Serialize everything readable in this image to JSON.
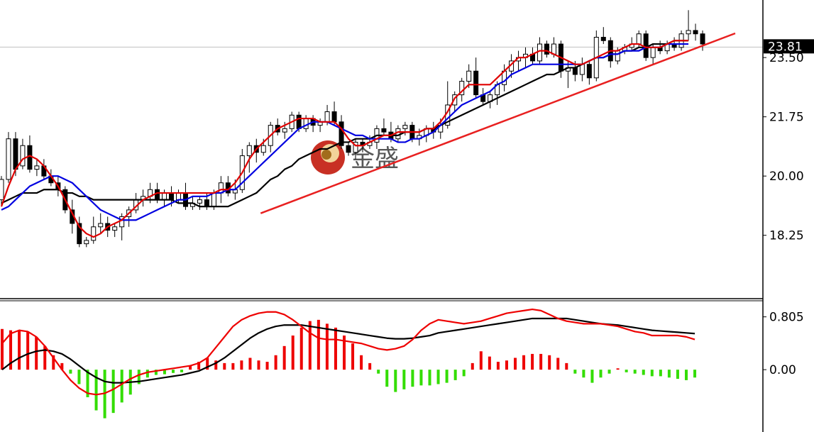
{
  "chart_data": [
    {
      "type": "candlestick",
      "panel": "price",
      "watermark": "金盛",
      "current_price": "23.81",
      "y_ticks": [
        "23.50",
        "21.75",
        "20.00",
        "18.25"
      ],
      "ylim": [
        16.4,
        25.2
      ],
      "colors": {
        "bull_body": "#ffffff",
        "bear_body": "#000000",
        "wick": "#000000",
        "ma_fast": "#e00000",
        "ma_mid": "#0000e0",
        "ma_slow": "#000000",
        "trendline": "#e82020"
      },
      "candles": [
        {
          "o": 19.3,
          "h": 20.0,
          "l": 19.1,
          "c": 19.9
        },
        {
          "o": 19.9,
          "h": 21.3,
          "l": 19.8,
          "c": 21.1
        },
        {
          "o": 21.1,
          "h": 21.3,
          "l": 20.0,
          "c": 20.2
        },
        {
          "o": 20.3,
          "h": 21.1,
          "l": 20.2,
          "c": 20.9
        },
        {
          "o": 20.9,
          "h": 21.2,
          "l": 20.1,
          "c": 20.2
        },
        {
          "o": 20.2,
          "h": 20.5,
          "l": 20.0,
          "c": 20.3
        },
        {
          "o": 20.3,
          "h": 20.5,
          "l": 19.9,
          "c": 20.0
        },
        {
          "o": 20.0,
          "h": 20.2,
          "l": 19.7,
          "c": 19.8
        },
        {
          "o": 19.8,
          "h": 20.0,
          "l": 19.4,
          "c": 19.6
        },
        {
          "o": 19.6,
          "h": 19.7,
          "l": 18.9,
          "c": 19.0
        },
        {
          "o": 19.0,
          "h": 19.3,
          "l": 18.3,
          "c": 18.6
        },
        {
          "o": 18.6,
          "h": 18.8,
          "l": 17.9,
          "c": 18.0
        },
        {
          "o": 18.0,
          "h": 18.2,
          "l": 17.9,
          "c": 18.1
        },
        {
          "o": 18.1,
          "h": 18.8,
          "l": 18.0,
          "c": 18.5
        },
        {
          "o": 18.5,
          "h": 18.9,
          "l": 18.3,
          "c": 18.6
        },
        {
          "o": 18.6,
          "h": 18.8,
          "l": 18.2,
          "c": 18.4
        },
        {
          "o": 18.4,
          "h": 18.6,
          "l": 18.2,
          "c": 18.5
        },
        {
          "o": 18.5,
          "h": 18.9,
          "l": 18.1,
          "c": 18.8
        },
        {
          "o": 18.8,
          "h": 19.1,
          "l": 18.5,
          "c": 19.0
        },
        {
          "o": 19.0,
          "h": 19.5,
          "l": 18.9,
          "c": 19.3
        },
        {
          "o": 19.3,
          "h": 19.6,
          "l": 19.1,
          "c": 19.4
        },
        {
          "o": 19.4,
          "h": 19.8,
          "l": 19.2,
          "c": 19.6
        },
        {
          "o": 19.6,
          "h": 19.8,
          "l": 19.2,
          "c": 19.3
        },
        {
          "o": 19.3,
          "h": 19.6,
          "l": 19.1,
          "c": 19.5
        },
        {
          "o": 19.5,
          "h": 19.7,
          "l": 19.1,
          "c": 19.3
        },
        {
          "o": 19.3,
          "h": 19.6,
          "l": 19.2,
          "c": 19.5
        },
        {
          "o": 19.5,
          "h": 19.8,
          "l": 19.0,
          "c": 19.1
        },
        {
          "o": 19.1,
          "h": 19.4,
          "l": 19.0,
          "c": 19.2
        },
        {
          "o": 19.2,
          "h": 19.4,
          "l": 19.0,
          "c": 19.3
        },
        {
          "o": 19.3,
          "h": 19.5,
          "l": 19.0,
          "c": 19.1
        },
        {
          "o": 19.1,
          "h": 19.6,
          "l": 19.0,
          "c": 19.5
        },
        {
          "o": 19.5,
          "h": 20.0,
          "l": 19.2,
          "c": 19.8
        },
        {
          "o": 19.8,
          "h": 20.0,
          "l": 19.4,
          "c": 19.5
        },
        {
          "o": 19.5,
          "h": 19.9,
          "l": 19.3,
          "c": 19.6
        },
        {
          "o": 19.6,
          "h": 20.8,
          "l": 19.5,
          "c": 20.6
        },
        {
          "o": 20.6,
          "h": 21.0,
          "l": 20.1,
          "c": 20.9
        },
        {
          "o": 20.9,
          "h": 21.1,
          "l": 20.4,
          "c": 20.7
        },
        {
          "o": 20.7,
          "h": 21.1,
          "l": 20.6,
          "c": 20.9
        },
        {
          "o": 20.9,
          "h": 21.6,
          "l": 20.7,
          "c": 21.5
        },
        {
          "o": 21.5,
          "h": 21.7,
          "l": 21.2,
          "c": 21.3
        },
        {
          "o": 21.3,
          "h": 21.6,
          "l": 21.1,
          "c": 21.4
        },
        {
          "o": 21.4,
          "h": 21.9,
          "l": 21.3,
          "c": 21.8
        },
        {
          "o": 21.8,
          "h": 21.9,
          "l": 21.3,
          "c": 21.4
        },
        {
          "o": 21.4,
          "h": 21.8,
          "l": 21.3,
          "c": 21.7
        },
        {
          "o": 21.7,
          "h": 21.8,
          "l": 21.3,
          "c": 21.5
        },
        {
          "o": 21.5,
          "h": 21.7,
          "l": 21.3,
          "c": 21.6
        },
        {
          "o": 21.6,
          "h": 22.1,
          "l": 21.5,
          "c": 21.9
        },
        {
          "o": 21.9,
          "h": 22.2,
          "l": 21.5,
          "c": 21.6
        },
        {
          "o": 21.6,
          "h": 21.8,
          "l": 20.8,
          "c": 20.9
        },
        {
          "o": 20.9,
          "h": 21.0,
          "l": 20.6,
          "c": 20.7
        },
        {
          "o": 20.7,
          "h": 21.1,
          "l": 20.5,
          "c": 21.0
        },
        {
          "o": 21.0,
          "h": 21.1,
          "l": 20.7,
          "c": 20.9
        },
        {
          "o": 20.9,
          "h": 21.2,
          "l": 20.8,
          "c": 21.0
        },
        {
          "o": 21.0,
          "h": 21.5,
          "l": 20.8,
          "c": 21.4
        },
        {
          "o": 21.4,
          "h": 21.7,
          "l": 21.2,
          "c": 21.3
        },
        {
          "o": 21.3,
          "h": 21.6,
          "l": 21.0,
          "c": 21.1
        },
        {
          "o": 21.1,
          "h": 21.5,
          "l": 21.0,
          "c": 21.4
        },
        {
          "o": 21.4,
          "h": 21.6,
          "l": 21.2,
          "c": 21.5
        },
        {
          "o": 21.5,
          "h": 21.6,
          "l": 21.0,
          "c": 21.1
        },
        {
          "o": 21.1,
          "h": 21.4,
          "l": 20.9,
          "c": 21.2
        },
        {
          "o": 21.2,
          "h": 21.5,
          "l": 21.0,
          "c": 21.4
        },
        {
          "o": 21.4,
          "h": 21.6,
          "l": 21.1,
          "c": 21.3
        },
        {
          "o": 21.3,
          "h": 21.7,
          "l": 21.1,
          "c": 21.5
        },
        {
          "o": 21.5,
          "h": 22.8,
          "l": 21.4,
          "c": 22.1
        },
        {
          "o": 22.1,
          "h": 22.5,
          "l": 21.9,
          "c": 22.4
        },
        {
          "o": 22.4,
          "h": 22.9,
          "l": 22.2,
          "c": 22.8
        },
        {
          "o": 22.8,
          "h": 23.3,
          "l": 22.6,
          "c": 23.1
        },
        {
          "o": 23.1,
          "h": 23.5,
          "l": 22.3,
          "c": 22.4
        },
        {
          "o": 22.4,
          "h": 22.6,
          "l": 22.1,
          "c": 22.2
        },
        {
          "o": 22.2,
          "h": 22.5,
          "l": 22.0,
          "c": 22.4
        },
        {
          "o": 22.4,
          "h": 22.8,
          "l": 22.1,
          "c": 22.7
        },
        {
          "o": 22.7,
          "h": 23.3,
          "l": 22.5,
          "c": 23.1
        },
        {
          "o": 23.1,
          "h": 23.6,
          "l": 22.9,
          "c": 23.4
        },
        {
          "o": 23.4,
          "h": 23.7,
          "l": 23.1,
          "c": 23.5
        },
        {
          "o": 23.5,
          "h": 23.8,
          "l": 23.2,
          "c": 23.6
        },
        {
          "o": 23.6,
          "h": 23.8,
          "l": 23.3,
          "c": 23.4
        },
        {
          "o": 23.4,
          "h": 24.1,
          "l": 23.3,
          "c": 23.9
        },
        {
          "o": 23.9,
          "h": 24.0,
          "l": 23.5,
          "c": 23.6
        },
        {
          "o": 23.6,
          "h": 24.1,
          "l": 23.5,
          "c": 23.9
        },
        {
          "o": 23.9,
          "h": 24.0,
          "l": 22.9,
          "c": 23.1
        },
        {
          "o": 23.1,
          "h": 23.4,
          "l": 22.6,
          "c": 23.2
        },
        {
          "o": 23.2,
          "h": 23.4,
          "l": 22.8,
          "c": 23.0
        },
        {
          "o": 23.0,
          "h": 23.5,
          "l": 22.8,
          "c": 23.3
        },
        {
          "o": 23.3,
          "h": 23.4,
          "l": 22.7,
          "c": 22.9
        },
        {
          "o": 22.9,
          "h": 24.3,
          "l": 22.8,
          "c": 24.1
        },
        {
          "o": 24.1,
          "h": 24.4,
          "l": 23.9,
          "c": 24.0
        },
        {
          "o": 24.0,
          "h": 24.1,
          "l": 23.2,
          "c": 23.4
        },
        {
          "o": 23.4,
          "h": 23.8,
          "l": 23.3,
          "c": 23.7
        },
        {
          "o": 23.7,
          "h": 23.9,
          "l": 23.6,
          "c": 23.8
        },
        {
          "o": 23.8,
          "h": 24.1,
          "l": 23.7,
          "c": 23.9
        },
        {
          "o": 23.9,
          "h": 24.3,
          "l": 23.8,
          "c": 24.2
        },
        {
          "o": 24.2,
          "h": 24.3,
          "l": 23.4,
          "c": 23.5
        },
        {
          "o": 23.5,
          "h": 23.9,
          "l": 23.3,
          "c": 23.8
        },
        {
          "o": 23.8,
          "h": 24.0,
          "l": 23.6,
          "c": 23.7
        },
        {
          "o": 23.7,
          "h": 24.0,
          "l": 23.6,
          "c": 23.9
        },
        {
          "o": 23.9,
          "h": 24.1,
          "l": 23.7,
          "c": 23.8
        },
        {
          "o": 23.8,
          "h": 24.3,
          "l": 23.7,
          "c": 24.2
        },
        {
          "o": 24.2,
          "h": 24.9,
          "l": 24.0,
          "c": 24.3
        },
        {
          "o": 24.3,
          "h": 24.5,
          "l": 24.0,
          "c": 24.2
        },
        {
          "o": 24.2,
          "h": 24.3,
          "l": 23.7,
          "c": 23.9
        }
      ],
      "ma_fast": [
        19.1,
        19.7,
        20.2,
        20.5,
        20.6,
        20.5,
        20.3,
        20.0,
        19.7,
        19.3,
        18.9,
        18.5,
        18.3,
        18.2,
        18.3,
        18.5,
        18.6,
        18.7,
        18.9,
        19.1,
        19.3,
        19.4,
        19.5,
        19.5,
        19.5,
        19.5,
        19.5,
        19.5,
        19.5,
        19.5,
        19.5,
        19.6,
        19.6,
        19.8,
        20.1,
        20.5,
        20.8,
        21.0,
        21.2,
        21.4,
        21.5,
        21.6,
        21.7,
        21.7,
        21.7,
        21.6,
        21.6,
        21.6,
        21.4,
        21.1,
        20.9,
        20.9,
        21.0,
        21.1,
        21.2,
        21.2,
        21.3,
        21.3,
        21.3,
        21.3,
        21.4,
        21.4,
        21.6,
        21.9,
        22.3,
        22.5,
        22.7,
        22.7,
        22.7,
        22.7,
        22.9,
        23.1,
        23.3,
        23.5,
        23.5,
        23.6,
        23.7,
        23.7,
        23.6,
        23.5,
        23.4,
        23.3,
        23.3,
        23.4,
        23.5,
        23.6,
        23.7,
        23.7,
        23.8,
        23.9,
        23.9,
        23.8,
        23.8,
        23.8,
        23.9,
        24.0,
        24.0,
        24.0
      ],
      "ma_mid": [
        19.0,
        19.1,
        19.3,
        19.5,
        19.7,
        19.8,
        19.9,
        20.0,
        20.0,
        19.9,
        19.8,
        19.6,
        19.4,
        19.2,
        19.0,
        18.9,
        18.8,
        18.7,
        18.7,
        18.7,
        18.8,
        18.9,
        19.0,
        19.1,
        19.2,
        19.3,
        19.3,
        19.4,
        19.4,
        19.4,
        19.5,
        19.5,
        19.6,
        19.6,
        19.8,
        20.0,
        20.2,
        20.4,
        20.6,
        20.8,
        21.0,
        21.2,
        21.4,
        21.5,
        21.6,
        21.6,
        21.6,
        21.5,
        21.4,
        21.3,
        21.2,
        21.2,
        21.1,
        21.1,
        21.1,
        21.1,
        21.0,
        21.0,
        21.1,
        21.1,
        21.2,
        21.3,
        21.5,
        21.7,
        21.9,
        22.1,
        22.2,
        22.3,
        22.4,
        22.5,
        22.7,
        22.8,
        23.0,
        23.1,
        23.2,
        23.3,
        23.3,
        23.3,
        23.3,
        23.3,
        23.3,
        23.3,
        23.3,
        23.4,
        23.5,
        23.5,
        23.6,
        23.6,
        23.7,
        23.7,
        23.7,
        23.8,
        23.8,
        23.8,
        23.9,
        23.9,
        23.9,
        23.9
      ],
      "ma_slow": [
        19.2,
        19.3,
        19.4,
        19.5,
        19.5,
        19.5,
        19.6,
        19.6,
        19.6,
        19.5,
        19.5,
        19.4,
        19.4,
        19.3,
        19.3,
        19.3,
        19.3,
        19.3,
        19.3,
        19.3,
        19.3,
        19.3,
        19.3,
        19.3,
        19.3,
        19.2,
        19.2,
        19.2,
        19.1,
        19.1,
        19.1,
        19.1,
        19.1,
        19.2,
        19.3,
        19.4,
        19.5,
        19.7,
        19.9,
        20.0,
        20.2,
        20.3,
        20.5,
        20.6,
        20.7,
        20.8,
        20.8,
        20.9,
        21.0,
        21.0,
        21.1,
        21.1,
        21.1,
        21.2,
        21.2,
        21.2,
        21.2,
        21.3,
        21.3,
        21.3,
        21.4,
        21.4,
        21.5,
        21.6,
        21.7,
        21.8,
        21.9,
        22.0,
        22.1,
        22.2,
        22.3,
        22.4,
        22.5,
        22.6,
        22.7,
        22.8,
        22.9,
        23.0,
        23.0,
        23.1,
        23.2,
        23.2,
        23.3,
        23.4,
        23.5,
        23.5,
        23.6,
        23.6,
        23.7,
        23.7,
        23.8,
        23.8,
        23.9,
        23.9,
        23.9,
        24.0,
        24.0,
        24.0
      ],
      "trendline": {
        "from": [
          36,
          18.9
        ],
        "to": [
          119,
          24.2
        ]
      }
    },
    {
      "type": "bar+line",
      "panel": "macd",
      "y_ticks": [
        "0.805",
        "0.00"
      ],
      "ylim": [
        -0.95,
        1.05
      ],
      "colors": {
        "hist_pos": "#ee0000",
        "hist_neg": "#33dd00",
        "line_fast": "#ee0000",
        "line_slow": "#000000"
      },
      "histogram": [
        0.62,
        0.6,
        0.6,
        0.58,
        0.5,
        0.36,
        0.22,
        0.1,
        -0.06,
        -0.22,
        -0.42,
        -0.62,
        -0.74,
        -0.66,
        -0.5,
        -0.38,
        -0.22,
        -0.12,
        -0.08,
        -0.07,
        -0.05,
        -0.04,
        0.06,
        0.12,
        0.18,
        0.14,
        0.1,
        0.1,
        0.14,
        0.18,
        0.14,
        0.12,
        0.22,
        0.36,
        0.52,
        0.64,
        0.74,
        0.76,
        0.7,
        0.64,
        0.52,
        0.4,
        0.22,
        0.1,
        -0.06,
        -0.26,
        -0.34,
        -0.3,
        -0.26,
        -0.24,
        -0.24,
        -0.22,
        -0.2,
        -0.16,
        -0.1,
        0.1,
        0.28,
        0.2,
        0.12,
        0.14,
        0.18,
        0.22,
        0.24,
        0.24,
        0.22,
        0.18,
        0.1,
        -0.06,
        -0.12,
        -0.2,
        -0.12,
        -0.06,
        0.02,
        -0.04,
        -0.06,
        -0.08,
        -0.1,
        -0.1,
        -0.12,
        -0.14,
        -0.16,
        -0.12
      ],
      "macd_line": [
        0.4,
        0.55,
        0.6,
        0.58,
        0.5,
        0.36,
        0.18,
        0.0,
        -0.16,
        -0.28,
        -0.36,
        -0.38,
        -0.36,
        -0.3,
        -0.22,
        -0.14,
        -0.08,
        -0.04,
        -0.02,
        0.0,
        0.02,
        0.04,
        0.06,
        0.1,
        0.18,
        0.34,
        0.5,
        0.66,
        0.76,
        0.82,
        0.86,
        0.88,
        0.88,
        0.84,
        0.76,
        0.66,
        0.56,
        0.48,
        0.46,
        0.46,
        0.44,
        0.42,
        0.4,
        0.36,
        0.32,
        0.3,
        0.32,
        0.36,
        0.46,
        0.6,
        0.7,
        0.76,
        0.74,
        0.72,
        0.7,
        0.72,
        0.74,
        0.78,
        0.82,
        0.86,
        0.88,
        0.9,
        0.92,
        0.9,
        0.84,
        0.78,
        0.74,
        0.72,
        0.7,
        0.7,
        0.7,
        0.68,
        0.66,
        0.62,
        0.58,
        0.56,
        0.52,
        0.52,
        0.52,
        0.52,
        0.5,
        0.46
      ],
      "signal_line": [
        0.0,
        0.1,
        0.18,
        0.24,
        0.28,
        0.3,
        0.28,
        0.24,
        0.16,
        0.06,
        -0.04,
        -0.12,
        -0.18,
        -0.2,
        -0.2,
        -0.19,
        -0.18,
        -0.16,
        -0.14,
        -0.12,
        -0.1,
        -0.08,
        -0.05,
        -0.02,
        0.04,
        0.1,
        0.18,
        0.28,
        0.38,
        0.48,
        0.56,
        0.62,
        0.66,
        0.68,
        0.68,
        0.68,
        0.66,
        0.64,
        0.62,
        0.6,
        0.58,
        0.56,
        0.54,
        0.52,
        0.5,
        0.48,
        0.47,
        0.47,
        0.48,
        0.5,
        0.52,
        0.56,
        0.58,
        0.6,
        0.62,
        0.64,
        0.66,
        0.68,
        0.7,
        0.72,
        0.74,
        0.76,
        0.78,
        0.78,
        0.78,
        0.78,
        0.78,
        0.76,
        0.74,
        0.72,
        0.7,
        0.69,
        0.68,
        0.66,
        0.64,
        0.62,
        0.6,
        0.59,
        0.58,
        0.57,
        0.56,
        0.55
      ]
    }
  ]
}
